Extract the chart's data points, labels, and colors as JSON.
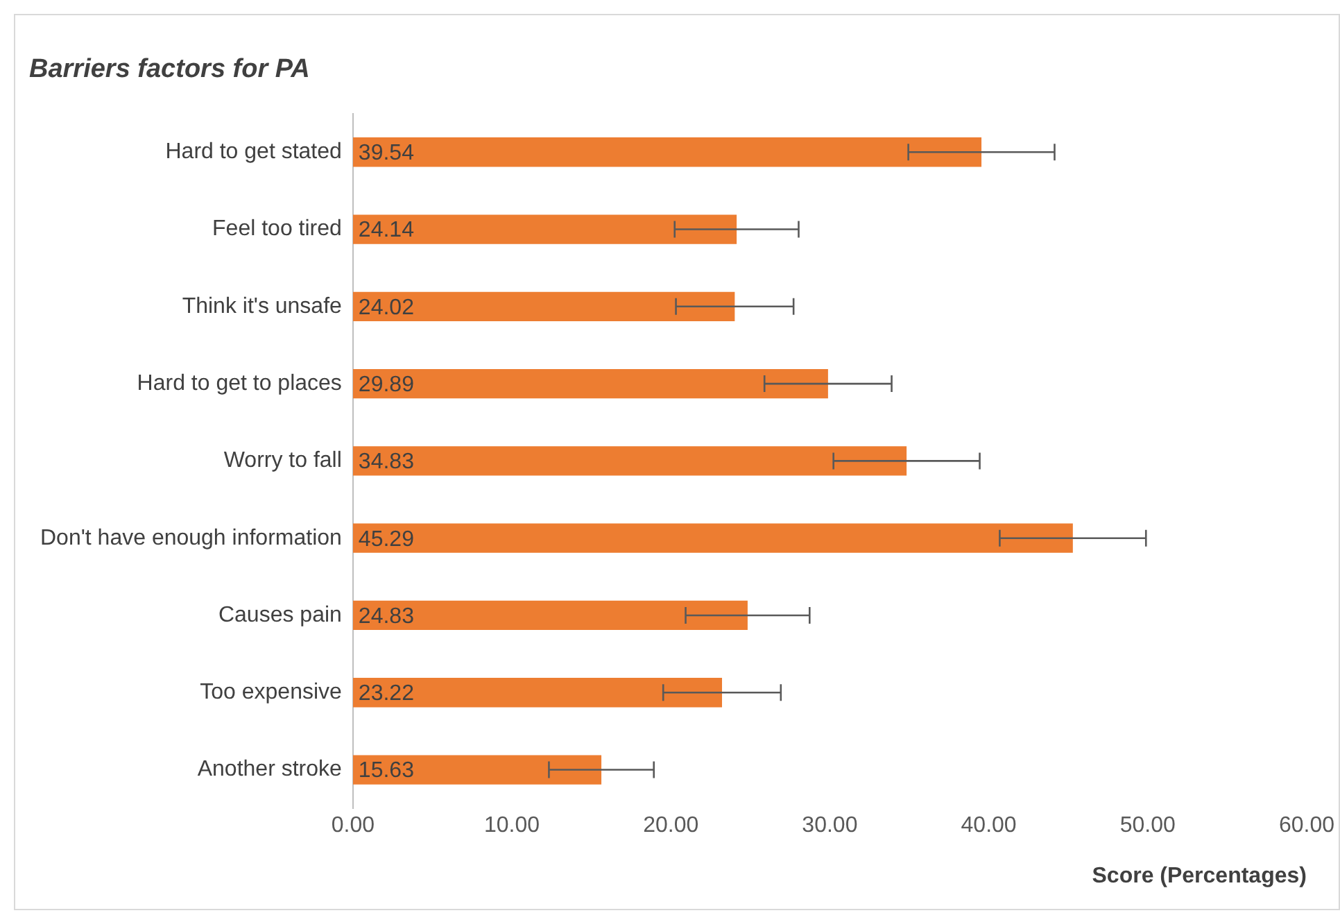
{
  "chart_data": {
    "type": "bar",
    "orientation": "horizontal",
    "title": "Barriers factors for PA",
    "xlabel": "Score (Percentages)",
    "categories": [
      "Hard to get stated",
      "Feel too tired",
      "Think it's unsafe",
      "Hard to get to places",
      "Worry to fall",
      "Don't have enough information",
      "Causes pain",
      "Too expensive",
      "Another stroke"
    ],
    "values": [
      39.54,
      24.14,
      24.02,
      29.89,
      34.83,
      45.29,
      24.83,
      23.22,
      15.63
    ],
    "errors": [
      4.6,
      3.9,
      3.7,
      4.0,
      4.6,
      4.6,
      3.9,
      3.7,
      3.3
    ],
    "color": "#ed7d31",
    "xlim": [
      0,
      60
    ],
    "xticks": [
      {
        "value": 0,
        "label": "0.00"
      },
      {
        "value": 10,
        "label": "10.00"
      },
      {
        "value": 20,
        "label": "20.00"
      },
      {
        "value": 30,
        "label": "30.00"
      },
      {
        "value": 40,
        "label": "40.00"
      },
      {
        "value": 50,
        "label": "50.00"
      },
      {
        "value": 60,
        "label": "60.00"
      }
    ],
    "data_labels": true,
    "grid": false,
    "legend": false
  }
}
